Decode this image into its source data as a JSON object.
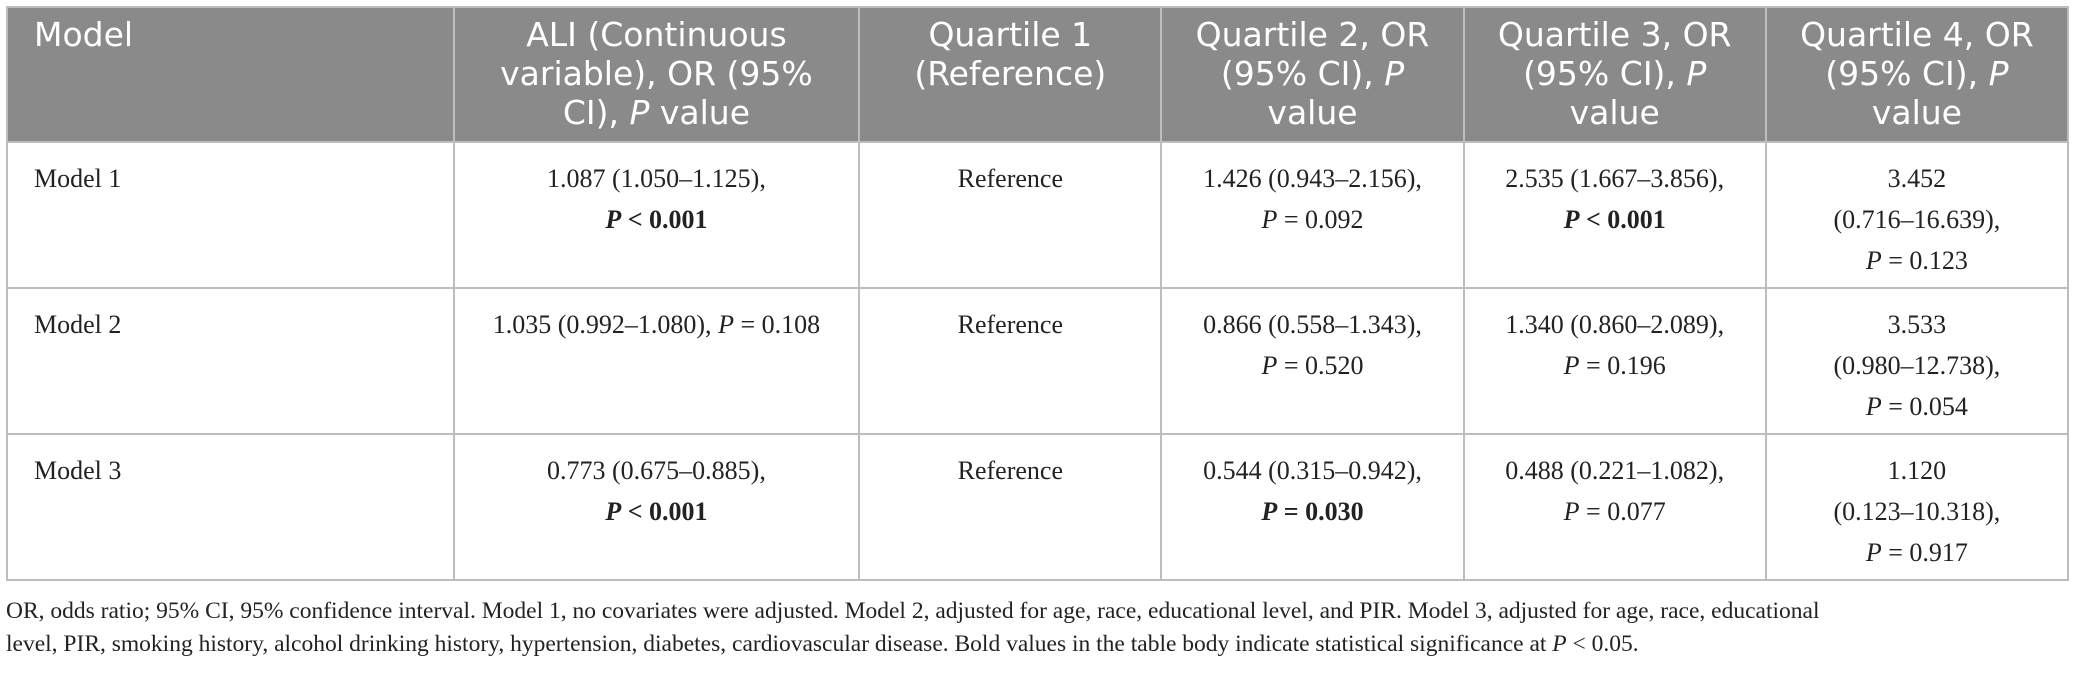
{
  "table": {
    "headers": [
      {
        "lines": [
          "Model"
        ]
      },
      {
        "lines": [
          "ALI (Continuous",
          "variable), OR (95%"
        ],
        "last_pre": "CI), ",
        "last_it": "P",
        "last_post": " value"
      },
      {
        "lines": [
          "Quartile 1",
          "(Reference)"
        ]
      },
      {
        "lines": [
          "Quartile 2, OR"
        ],
        "last_pre": "(95% CI), ",
        "last_it": "P",
        "extra": "value"
      },
      {
        "lines": [
          "Quartile 3, OR"
        ],
        "last_pre": "(95% CI), ",
        "last_it": "P",
        "extra": "value"
      },
      {
        "lines": [
          "Quartile 4, OR"
        ],
        "last_pre": "(95% CI), ",
        "last_it": "P",
        "extra": "value"
      }
    ],
    "rows": [
      {
        "model": "Model 1",
        "ali": {
          "text": "1.087 (1.050–1.125),",
          "p_op": " < ",
          "p_val": "0.001"
        },
        "q1": "Reference",
        "q2": {
          "text": "1.426 (0.943–2.156),",
          "p_op": " = ",
          "p_val": "0.092"
        },
        "q3": {
          "text": "2.535 (1.667–3.856),",
          "p_op": " < ",
          "p_val": "0.001"
        },
        "q4": {
          "or": "3.452",
          "ci": "(0.716–16.639),",
          "p_op": " = ",
          "p_val": "0.123"
        }
      },
      {
        "model": "Model 2",
        "ali": {
          "text": "1.035 (0.992–1.080), ",
          "p_op": " = ",
          "p_val": "0.108"
        },
        "q1": "Reference",
        "q2": {
          "text": "0.866 (0.558–1.343),",
          "p_op": " = ",
          "p_val": "0.520"
        },
        "q3": {
          "text": "1.340 (0.860–2.089),",
          "p_op": " = ",
          "p_val": "0.196"
        },
        "q4": {
          "or": "3.533",
          "ci": "(0.980–12.738),",
          "p_op": " = ",
          "p_val": "0.054"
        }
      },
      {
        "model": "Model 3",
        "ali": {
          "text": "0.773 (0.675–0.885),",
          "p_op": " < ",
          "p_val": "0.001"
        },
        "q1": "Reference",
        "q2": {
          "text": "0.544 (0.315–0.942),",
          "p_op": " = ",
          "p_val": "0.030"
        },
        "q3": {
          "text": "0.488 (0.221–1.082),",
          "p_op": " = ",
          "p_val": "0.077"
        },
        "q4": {
          "or": "1.120",
          "ci": "(0.123–10.318),",
          "p_op": " = ",
          "p_val": "0.917"
        }
      }
    ]
  },
  "footnote": {
    "line1": "OR, odds ratio; 95% CI, 95% confidence interval. Model 1, no covariates were adjusted. Model 2, adjusted for age, race, educational level, and PIR. Model 3, adjusted for age, race, educational",
    "line2_pre": "level, PIR, smoking history, alcohol drinking history, hypertension, diabetes, cardiovascular disease. Bold values in the table body indicate statistical significance at ",
    "line2_it": "P",
    "line2_post": " < 0.05."
  }
}
